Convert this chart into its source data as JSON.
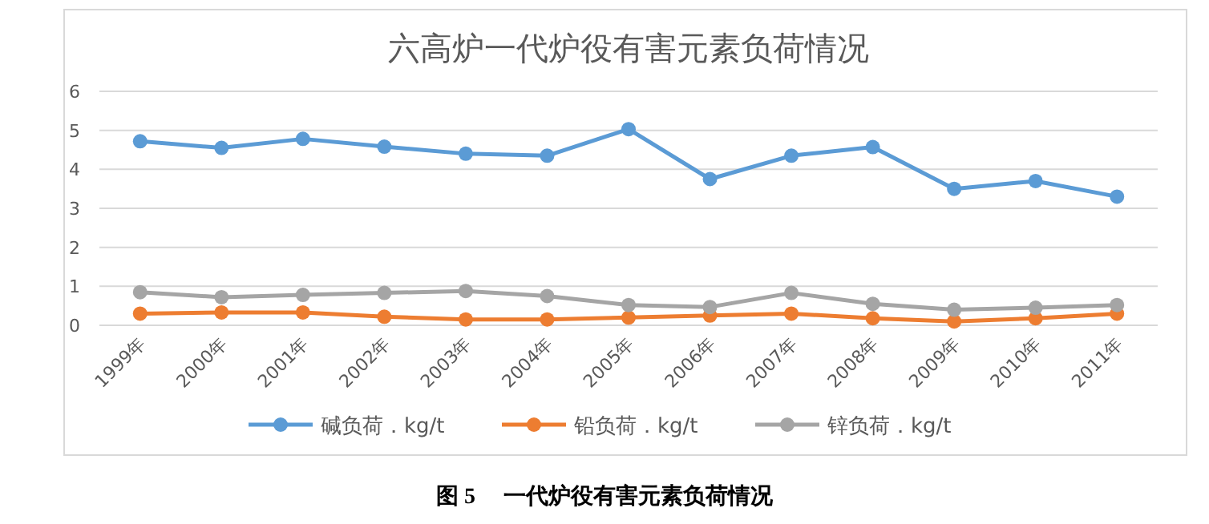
{
  "chart_data": {
    "type": "line",
    "title": "六高炉一代炉役有害元素负荷情况",
    "categories": [
      "1999年",
      "2000年",
      "2001年",
      "2002年",
      "2003年",
      "2004年",
      "2005年",
      "2006年",
      "2007年",
      "2008年",
      "2009年",
      "2010年",
      "2011年"
    ],
    "series": [
      {
        "name": "碱负荷．kg/t",
        "color": "#5b9bd5",
        "values": [
          4.72,
          4.55,
          4.78,
          4.58,
          4.4,
          4.35,
          5.03,
          3.75,
          4.35,
          4.57,
          3.5,
          3.7,
          3.3
        ]
      },
      {
        "name": "铅负荷．kg/t",
        "color": "#ed7d31",
        "values": [
          0.3,
          0.33,
          0.33,
          0.22,
          0.15,
          0.15,
          0.2,
          0.25,
          0.3,
          0.18,
          0.1,
          0.18,
          0.3
        ]
      },
      {
        "name": "锌负荷．kg/t",
        "color": "#a5a5a5",
        "values": [
          0.85,
          0.72,
          0.78,
          0.83,
          0.88,
          0.75,
          0.52,
          0.47,
          0.83,
          0.55,
          0.4,
          0.45,
          0.52
        ]
      }
    ],
    "ylim": [
      0,
      6
    ],
    "yticks": [
      0,
      1,
      2,
      3,
      4,
      5,
      6
    ],
    "grid": "y",
    "legend": "bottom",
    "marker": "circle",
    "line_style": "solid",
    "annotations": [
      "图 5　 一代炉役有害元素负荷情况"
    ]
  }
}
